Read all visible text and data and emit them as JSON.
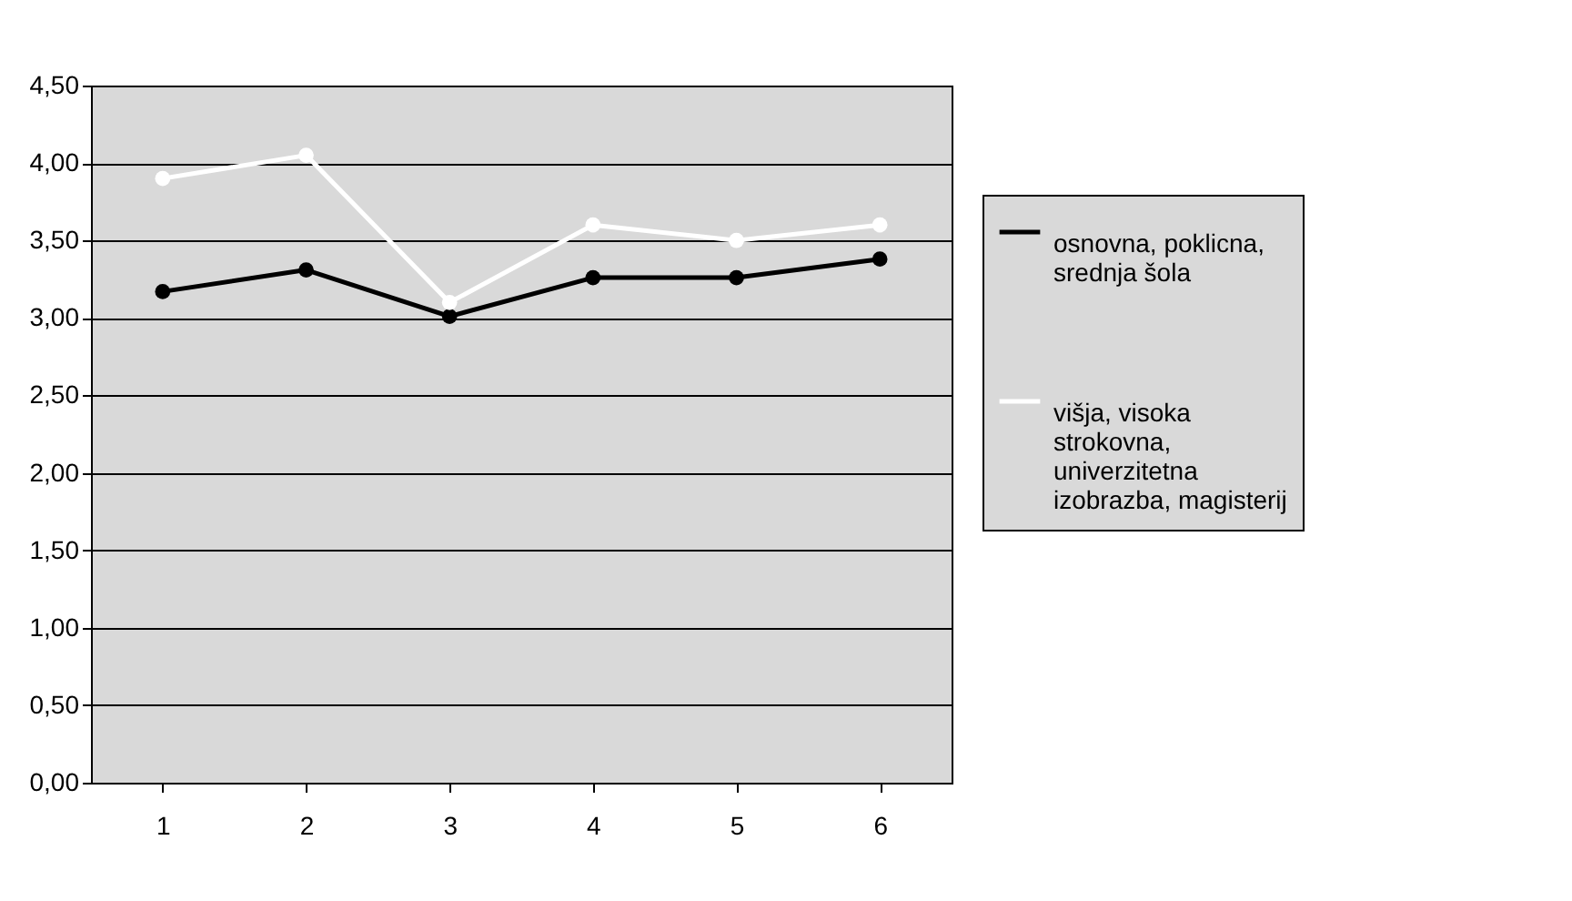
{
  "chart_data": {
    "type": "line",
    "categories": [
      "1",
      "2",
      "3",
      "4",
      "5",
      "6"
    ],
    "series": [
      {
        "name": "osnovna, poklicna, srednja šola",
        "color": "#000000",
        "values": [
          3.17,
          3.31,
          3.01,
          3.26,
          3.26,
          3.38
        ]
      },
      {
        "name": "višja, visoka strokovna, univerzitetna izobrazba, magisterij",
        "color": "#ffffff",
        "values": [
          3.9,
          4.05,
          3.1,
          3.6,
          3.5,
          3.6
        ]
      }
    ],
    "ylim": [
      0,
      4.5
    ],
    "yticks": [
      {
        "value": 0,
        "label": "0,00"
      },
      {
        "value": 0.5,
        "label": "0,50"
      },
      {
        "value": 1,
        "label": "1,00"
      },
      {
        "value": 1.5,
        "label": "1,50"
      },
      {
        "value": 2,
        "label": "2,00"
      },
      {
        "value": 2.5,
        "label": "2,50"
      },
      {
        "value": 3,
        "label": "3,00"
      },
      {
        "value": 3.5,
        "label": "3,50"
      },
      {
        "value": 4,
        "label": "4,00"
      },
      {
        "value": 4.5,
        "label": "4,50"
      }
    ],
    "grid": "y",
    "legend": "right",
    "marker": "circle",
    "line_style": "solid"
  }
}
